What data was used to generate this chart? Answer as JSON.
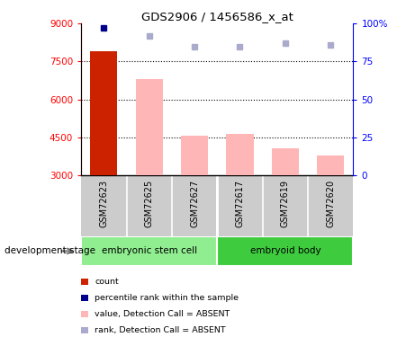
{
  "title": "GDS2906 / 1456586_x_at",
  "samples": [
    "GSM72623",
    "GSM72625",
    "GSM72627",
    "GSM72617",
    "GSM72619",
    "GSM72620"
  ],
  "bar_values": [
    7900,
    6800,
    4550,
    4650,
    4050,
    3800
  ],
  "bar_colors": [
    "#CC2200",
    "#FFB6B6",
    "#FFB6B6",
    "#FFB6B6",
    "#FFB6B6",
    "#FFB6B6"
  ],
  "rank_dots": [
    97,
    92,
    85,
    85,
    87,
    86
  ],
  "rank_dot_color_dark": "#00008B",
  "rank_dot_color_light": "#AAAACC",
  "ylim_left": [
    3000,
    9000
  ],
  "ylim_right": [
    0,
    100
  ],
  "yticks_left": [
    3000,
    4500,
    6000,
    7500,
    9000
  ],
  "yticks_right": [
    0,
    25,
    50,
    75,
    100
  ],
  "baseline": 3000,
  "grid_lines": [
    4500,
    6000,
    7500
  ],
  "group1_name": "embryonic stem cell",
  "group1_color": "#90EE90",
  "group2_name": "embryoid body",
  "group2_color": "#3ECC3E",
  "group_split": 3,
  "sample_bg_color": "#CCCCCC",
  "legend_items": [
    {
      "color": "#CC2200",
      "label": "count"
    },
    {
      "color": "#00008B",
      "label": "percentile rank within the sample"
    },
    {
      "color": "#FFB6B6",
      "label": "value, Detection Call = ABSENT"
    },
    {
      "color": "#AAAACC",
      "label": "rank, Detection Call = ABSENT"
    }
  ],
  "dev_stage_label": "development stage",
  "background_color": "#FFFFFF"
}
